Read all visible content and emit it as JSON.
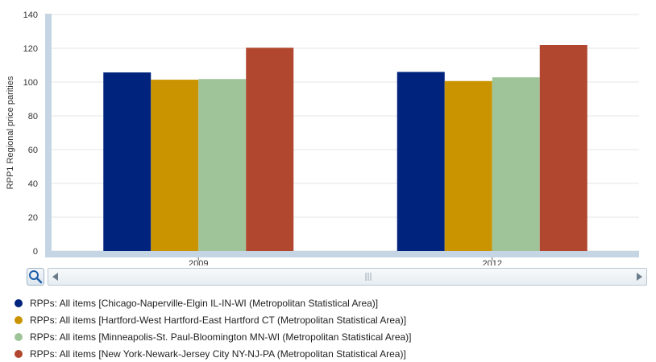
{
  "chart_data": {
    "type": "bar",
    "categories": [
      "2009",
      "2012"
    ],
    "ylabel": "RPP1  Regional price parities",
    "ylim": [
      0,
      140
    ],
    "yticks": [
      0,
      20,
      40,
      60,
      80,
      100,
      120,
      140
    ],
    "grid": true,
    "legend_position": "bottom",
    "series": [
      {
        "name": "RPPs: All items [Chicago-Naperville-Elgin IL-IN-WI (Metropolitan Statistical Area)]",
        "color": "#00247d",
        "values": [
          105.7,
          106.0
        ]
      },
      {
        "name": "RPPs: All items [Hartford-West Hartford-East Hartford CT (Metropolitan Statistical Area)]",
        "color": "#c99400",
        "values": [
          101.4,
          100.6
        ]
      },
      {
        "name": "RPPs: All items [Minneapolis-St. Paul-Bloomington MN-WI (Metropolitan Statistical Area)]",
        "color": "#a0c49a",
        "values": [
          101.8,
          102.8
        ]
      },
      {
        "name": "RPPs: All items [New York-Newark-Jersey City NY-NJ-PA (Metropolitan Statistical Area)]",
        "color": "#b0472e",
        "values": [
          120.3,
          121.9
        ]
      }
    ]
  },
  "scroller": {
    "zoom_icon": "magnifier-icon",
    "left_icon": "arrow-left-icon",
    "right_icon": "arrow-right-icon",
    "grip_icon": "grip-icon"
  }
}
